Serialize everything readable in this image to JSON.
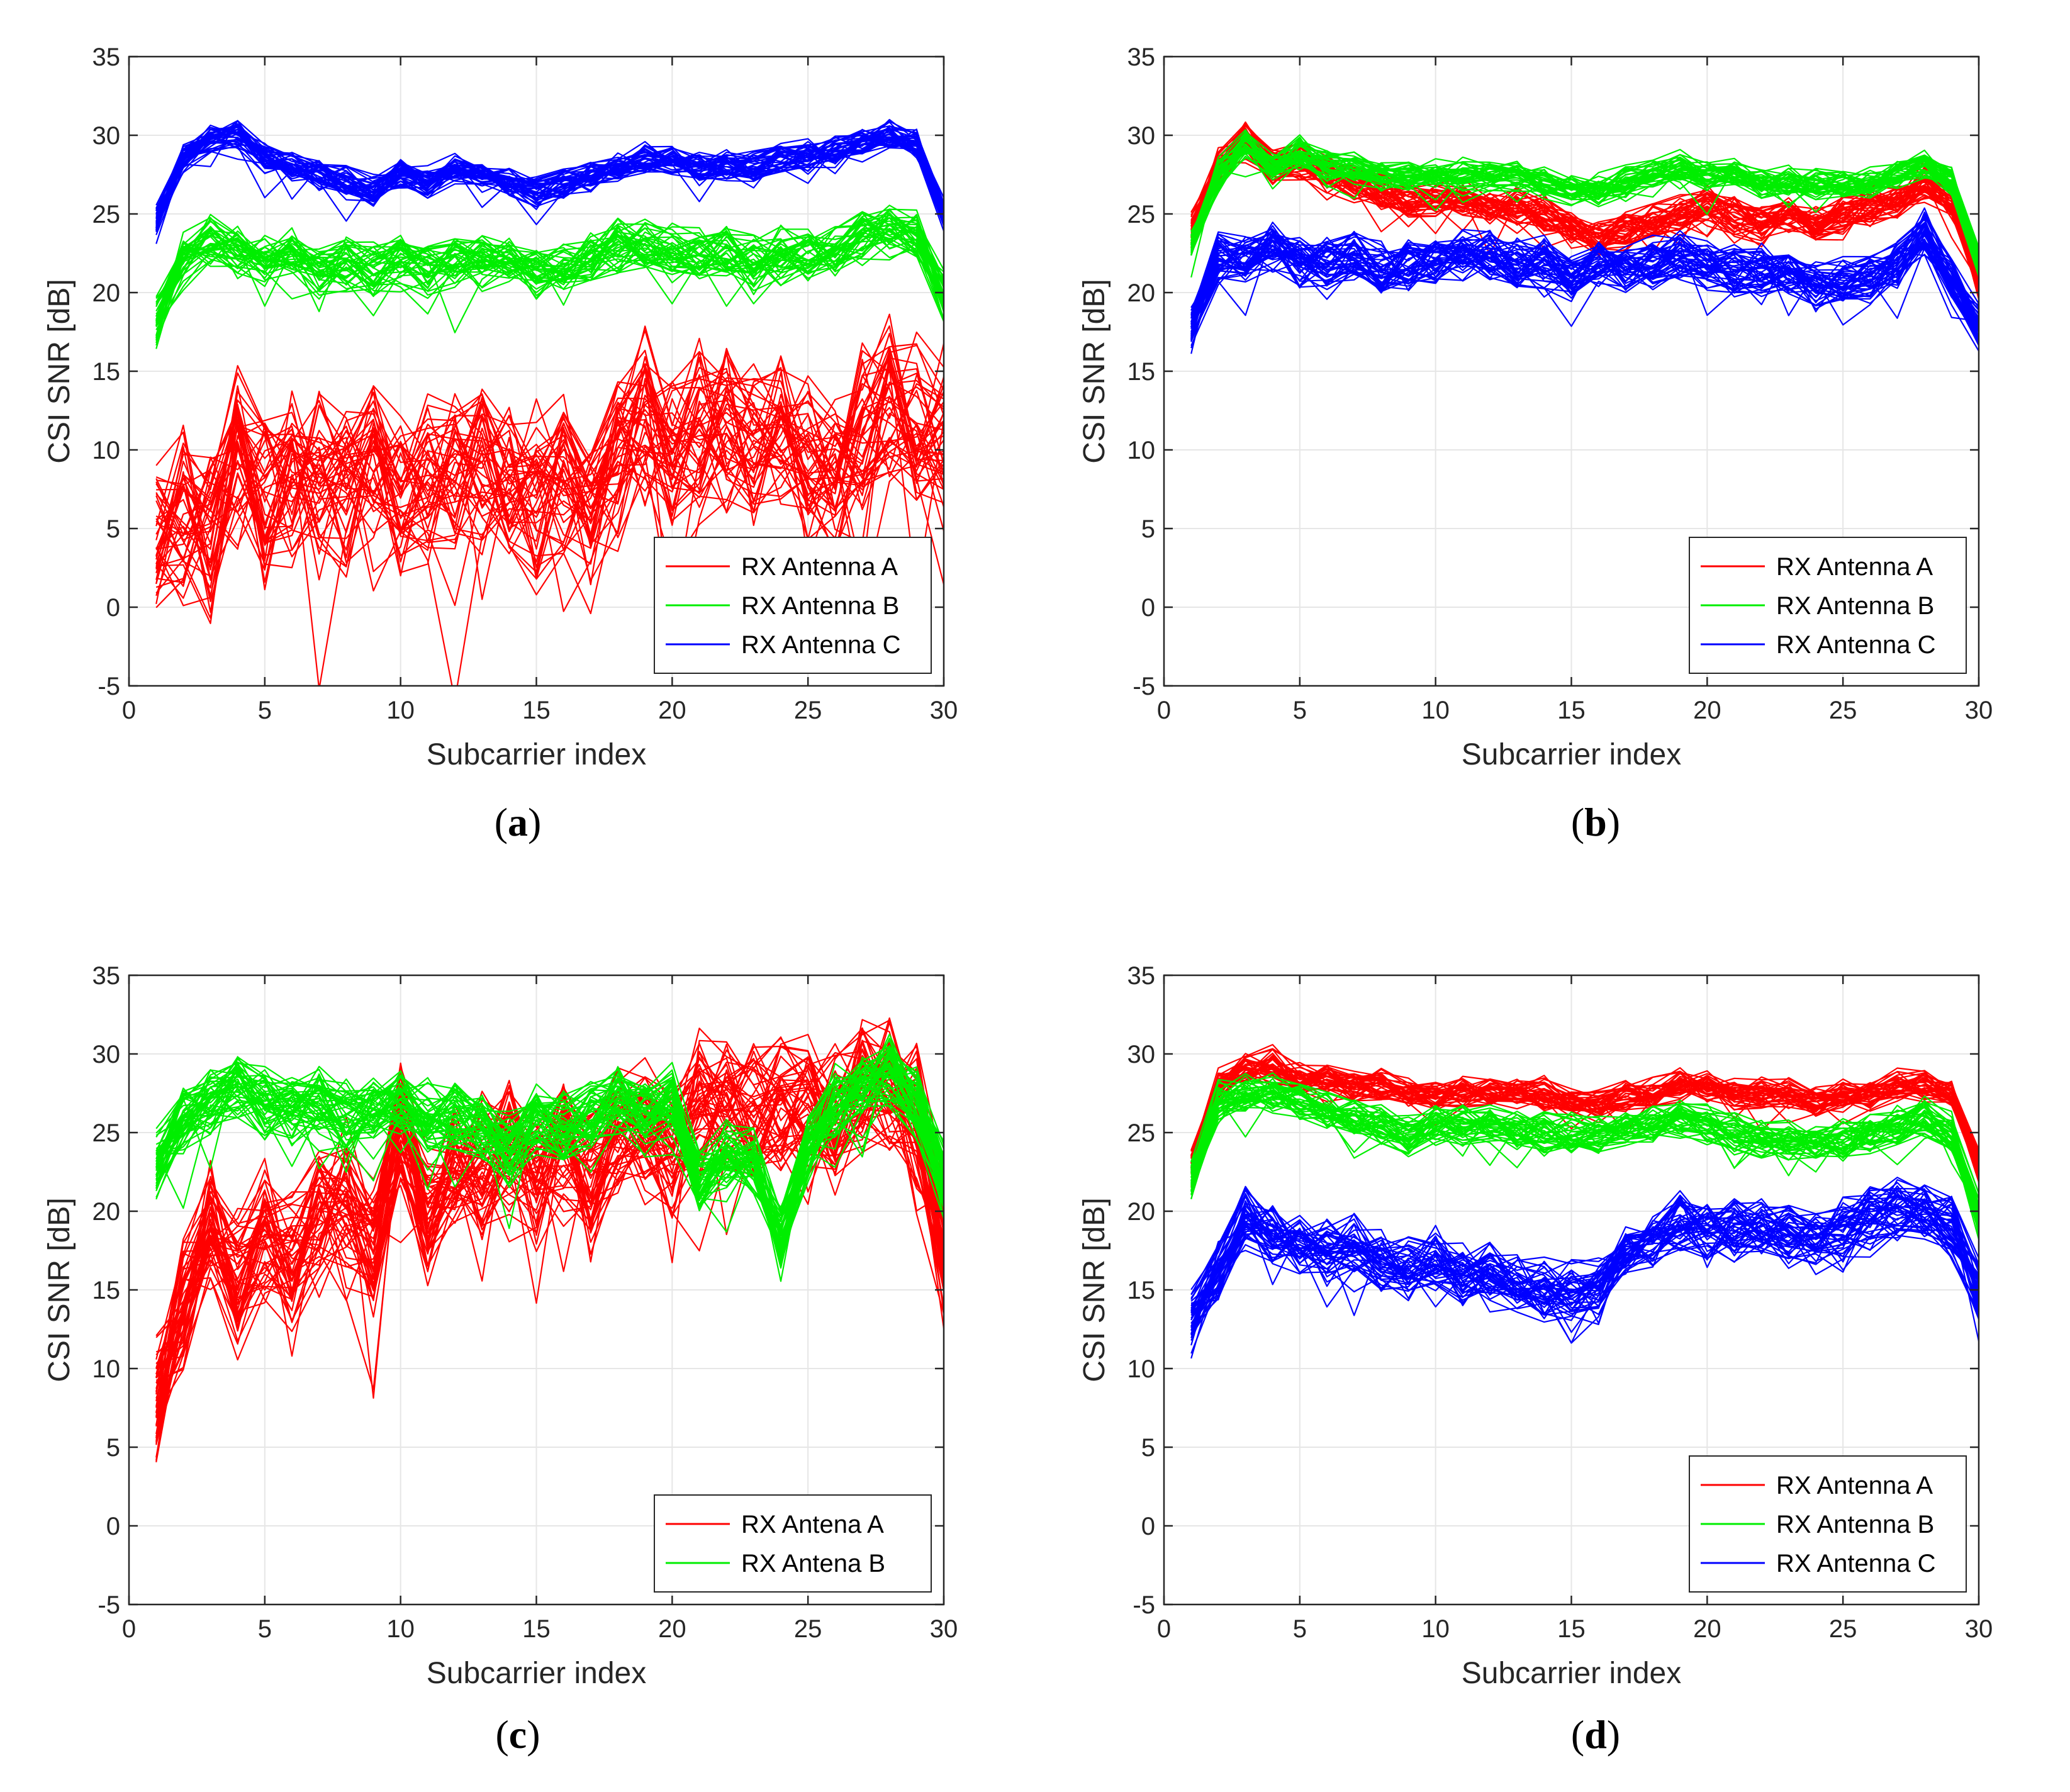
{
  "colors": {
    "A": "#ff0000",
    "B": "#00ee00",
    "C": "#0000ff",
    "grid": "#e6e6e6",
    "axis": "#262626"
  },
  "chart_data": [
    {
      "panel": "a",
      "caption": "a",
      "type": "line",
      "xlabel": "Subcarrier index",
      "ylabel": "CSI SNR [dB]",
      "xlim": [
        0,
        30
      ],
      "ylim": [
        -5,
        35
      ],
      "xticks": [
        0,
        5,
        10,
        15,
        20,
        25,
        30
      ],
      "yticks": [
        -5,
        0,
        5,
        10,
        15,
        20,
        25,
        30,
        35
      ],
      "grid": true,
      "legend_position": "bottom-right",
      "x": [
        1,
        2,
        3,
        4,
        5,
        6,
        7,
        8,
        9,
        10,
        11,
        12,
        13,
        14,
        15,
        16,
        17,
        18,
        19,
        20,
        21,
        22,
        23,
        24,
        25,
        26,
        27,
        28,
        29,
        30
      ],
      "series": [
        {
          "name": "RX Antenna A",
          "color_key": "A",
          "spread": 4.5,
          "traces": 45,
          "values": [
            5,
            6,
            5,
            10,
            7,
            8,
            9,
            7,
            9,
            7,
            8,
            8,
            9,
            8,
            7,
            8,
            6,
            10,
            12,
            10,
            11,
            12,
            10,
            11,
            9,
            8,
            12,
            13,
            12,
            11
          ]
        },
        {
          "name": "RX Antenna B",
          "color_key": "B",
          "spread": 1.4,
          "traces": 40,
          "values": [
            18,
            22,
            23.5,
            22.5,
            22,
            22.5,
            21.5,
            22,
            21.5,
            22,
            21.5,
            22,
            22,
            22,
            21.5,
            21.5,
            22,
            23,
            23,
            22.5,
            22.5,
            22.5,
            22,
            22.5,
            22.5,
            22.5,
            23.5,
            24,
            23.5,
            20
          ]
        },
        {
          "name": "RX Antenna C",
          "color_key": "C",
          "spread": 0.8,
          "traces": 40,
          "values": [
            24.5,
            28.5,
            29.8,
            30,
            28.5,
            28,
            27.5,
            27,
            26.5,
            27.5,
            27,
            27.8,
            27.5,
            27,
            26.5,
            27,
            27.5,
            28,
            28.5,
            28.5,
            28,
            28,
            28,
            28.5,
            28.8,
            29,
            29.5,
            30,
            29.5,
            25
          ]
        }
      ]
    },
    {
      "panel": "b",
      "caption": "b",
      "type": "line",
      "xlabel": "Subcarrier index",
      "ylabel": "CSI SNR [dB]",
      "xlim": [
        0,
        30
      ],
      "ylim": [
        -5,
        35
      ],
      "xticks": [
        0,
        5,
        10,
        15,
        20,
        25,
        30
      ],
      "yticks": [
        -5,
        0,
        5,
        10,
        15,
        20,
        25,
        30,
        35
      ],
      "grid": true,
      "legend_position": "bottom-right",
      "x": [
        1,
        2,
        3,
        4,
        5,
        6,
        7,
        8,
        9,
        10,
        11,
        12,
        13,
        14,
        15,
        16,
        17,
        18,
        19,
        20,
        21,
        22,
        23,
        24,
        25,
        26,
        27,
        28,
        29,
        30
      ],
      "series": [
        {
          "name": "RX Antenna A",
          "color_key": "A",
          "spread": 1.0,
          "traces": 40,
          "values": [
            24,
            28,
            30,
            28,
            28.5,
            27.5,
            27,
            26.5,
            26,
            26,
            26,
            25.5,
            25.5,
            25,
            24,
            23.5,
            24,
            24.5,
            25,
            25.5,
            25,
            24.5,
            25,
            24.5,
            25,
            25.5,
            26,
            27,
            26,
            21
          ]
        },
        {
          "name": "RX Antenna B",
          "color_key": "B",
          "spread": 0.8,
          "traces": 40,
          "values": [
            23,
            27.5,
            29.5,
            28,
            29,
            28,
            28,
            27.5,
            27.5,
            27.5,
            27.5,
            27.5,
            27.5,
            27,
            26.5,
            26.5,
            27,
            27.5,
            28,
            27.5,
            27.5,
            27,
            27,
            27,
            27,
            27,
            27.5,
            28,
            27,
            22
          ]
        },
        {
          "name": "RX Antenna C",
          "color_key": "C",
          "spread": 1.3,
          "traces": 45,
          "values": [
            18,
            22.5,
            22,
            23,
            22,
            22,
            22.5,
            21.5,
            22,
            22,
            22.5,
            22.5,
            22,
            22,
            21,
            22,
            21.5,
            22,
            22.5,
            22,
            21.5,
            21.5,
            21.5,
            20.5,
            21,
            21,
            22,
            24,
            21,
            18
          ]
        }
      ]
    },
    {
      "panel": "c",
      "caption": "c",
      "type": "line",
      "xlabel": "Subcarrier index",
      "ylabel": "CSI SNR [dB]",
      "xlim": [
        0,
        30
      ],
      "ylim": [
        -5,
        35
      ],
      "xticks": [
        0,
        5,
        10,
        15,
        20,
        25,
        30
      ],
      "yticks": [
        -5,
        0,
        5,
        10,
        15,
        20,
        25,
        30,
        35
      ],
      "grid": true,
      "legend_position": "bottom-right",
      "x": [
        1,
        2,
        3,
        4,
        5,
        6,
        7,
        8,
        9,
        10,
        11,
        12,
        13,
        14,
        15,
        16,
        17,
        18,
        19,
        20,
        21,
        22,
        23,
        24,
        25,
        26,
        27,
        28,
        29,
        30
      ],
      "series": [
        {
          "name": "RX Antena A",
          "color_key": "A",
          "spread": 3.5,
          "traces": 50,
          "values": [
            8,
            14,
            19,
            16,
            19,
            17,
            20,
            21,
            18,
            25,
            20,
            23,
            23,
            24,
            22,
            24,
            22,
            25,
            26,
            24,
            27,
            27,
            26,
            27,
            27,
            26,
            28,
            28,
            26,
            18
          ]
        },
        {
          "name": "RX Antena B",
          "color_key": "B",
          "spread": 1.8,
          "traces": 50,
          "values": [
            23,
            26,
            27,
            28,
            27,
            26.5,
            27,
            26,
            26.5,
            27,
            26,
            26,
            25.5,
            24,
            26,
            25.5,
            26,
            27,
            26,
            27,
            22,
            24,
            23,
            18,
            24,
            27,
            28,
            29,
            27,
            22
          ]
        }
      ]
    },
    {
      "panel": "d",
      "caption": "d",
      "type": "line",
      "xlabel": "Subcarrier index",
      "ylabel": "CSI SNR [dB]",
      "xlim": [
        0,
        30
      ],
      "ylim": [
        -5,
        35
      ],
      "xticks": [
        0,
        5,
        10,
        15,
        20,
        25,
        30
      ],
      "yticks": [
        -5,
        0,
        5,
        10,
        15,
        20,
        25,
        30,
        35
      ],
      "grid": true,
      "legend_position": "bottom-right",
      "x": [
        1,
        2,
        3,
        4,
        5,
        6,
        7,
        8,
        9,
        10,
        11,
        12,
        13,
        14,
        15,
        16,
        17,
        18,
        19,
        20,
        21,
        22,
        23,
        24,
        25,
        26,
        27,
        28,
        29,
        30
      ],
      "series": [
        {
          "name": "RX Antenna A",
          "color_key": "A",
          "spread": 0.8,
          "traces": 40,
          "values": [
            23,
            28,
            29,
            29.5,
            28.5,
            28.5,
            28,
            28,
            27.5,
            27.5,
            27.5,
            27.5,
            27.5,
            27.5,
            27,
            27,
            27.5,
            27.5,
            28,
            28,
            27.5,
            27.5,
            27.5,
            27,
            27.5,
            27.5,
            28,
            28,
            27.5,
            23
          ]
        },
        {
          "name": "RX Antenna B",
          "color_key": "B",
          "spread": 1.0,
          "traces": 40,
          "values": [
            22,
            27,
            27.5,
            27.5,
            27,
            26.5,
            26,
            25.5,
            25,
            25.5,
            25.5,
            25.5,
            25,
            25,
            25,
            25,
            25.5,
            25.5,
            26,
            25.5,
            25,
            24.5,
            24.5,
            24.5,
            24.5,
            25,
            25.5,
            26,
            25,
            20
          ]
        },
        {
          "name": "RX Antenna C",
          "color_key": "C",
          "spread": 1.6,
          "traces": 45,
          "values": [
            13,
            16,
            19.5,
            18.5,
            18,
            17.5,
            18,
            17,
            16.5,
            17,
            16,
            16,
            15.5,
            15,
            15,
            15,
            17.5,
            18,
            19.5,
            19,
            19,
            19,
            18.5,
            18,
            19,
            19.5,
            20,
            20,
            19,
            15
          ]
        }
      ]
    }
  ]
}
